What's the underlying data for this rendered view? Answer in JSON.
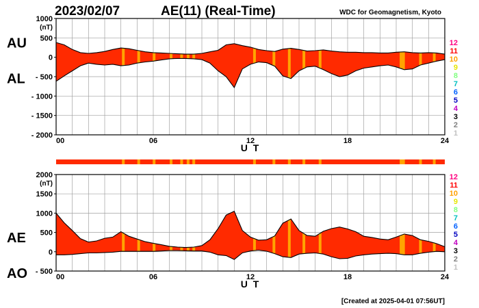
{
  "header": {
    "date": "2023/02/07",
    "title": "AE(11) (Real-Time)",
    "source": "WDC for Geomagnetism, Kyoto"
  },
  "footer": {
    "created": "[Created at 2025-04-01 07:56UT]"
  },
  "colors": {
    "fill": "#ff2a00",
    "highlight": "#ffa400",
    "line": "#000000",
    "grid": "#a0a0a0",
    "bar_fill": "#ff2a00"
  },
  "station_scale": {
    "labels": [
      "12",
      "11",
      "10",
      "9",
      "8",
      "7",
      "6",
      "5",
      "4",
      "3",
      "2",
      "1"
    ],
    "colors": [
      "#ff0080",
      "#ff0000",
      "#ffa000",
      "#e6e600",
      "#80ff80",
      "#00c0c0",
      "#0060ff",
      "#0000c0",
      "#c000c0",
      "#000000",
      "#808080",
      "#c0c0c0"
    ]
  },
  "chart_data": [
    {
      "type": "area",
      "name": "AU/AL panel",
      "series": [
        {
          "name": "AU"
        },
        {
          "name": "AL"
        }
      ],
      "ylabel_unit": "(nT)",
      "ylim": [
        -2000,
        1000
      ],
      "yticks": [
        1000,
        500,
        0,
        -500,
        -1000,
        -1500,
        -2000
      ],
      "ytick_labels": [
        "1000",
        "500",
        "0",
        "- 500",
        "- 1000",
        "- 1500",
        "- 2000"
      ],
      "xlim": [
        0,
        24
      ],
      "xticks": [
        0,
        6,
        12,
        18,
        24
      ],
      "xtick_labels": [
        "00",
        "06",
        "12",
        "18",
        "24"
      ],
      "xlabel": "U T",
      "x": [
        0,
        0.5,
        1,
        1.5,
        2,
        2.5,
        3,
        3.5,
        4,
        4.5,
        5,
        5.5,
        6,
        6.5,
        7,
        7.5,
        8,
        8.5,
        9,
        9.5,
        10,
        10.5,
        11,
        11.5,
        12,
        12.5,
        13,
        13.5,
        14,
        14.5,
        15,
        15.5,
        16,
        16.5,
        17,
        17.5,
        18,
        18.5,
        19,
        19.5,
        20,
        20.5,
        21,
        21.5,
        22,
        22.5,
        23,
        23.5,
        24
      ],
      "upper": [
        380,
        320,
        200,
        120,
        100,
        120,
        150,
        200,
        240,
        220,
        180,
        140,
        120,
        110,
        100,
        90,
        80,
        80,
        100,
        140,
        180,
        320,
        350,
        300,
        260,
        200,
        170,
        150,
        210,
        230,
        200,
        160,
        170,
        190,
        160,
        140,
        130,
        130,
        120,
        120,
        110,
        110,
        130,
        140,
        120,
        110,
        120,
        110,
        80
      ],
      "lower": [
        -620,
        -480,
        -350,
        -220,
        -150,
        -180,
        -200,
        -180,
        -220,
        -200,
        -150,
        -120,
        -100,
        -70,
        -40,
        -30,
        -30,
        -40,
        -60,
        -150,
        -350,
        -500,
        -780,
        -300,
        -180,
        -120,
        -140,
        -230,
        -480,
        -550,
        -350,
        -250,
        -230,
        -320,
        -420,
        -500,
        -460,
        -350,
        -280,
        -250,
        -220,
        -200,
        -250,
        -320,
        -300,
        -200,
        -150,
        -100,
        -60
      ]
    },
    {
      "type": "area",
      "name": "AE/AO panel",
      "series": [
        {
          "name": "AE"
        },
        {
          "name": "AO"
        }
      ],
      "ylabel_unit": "(nT)",
      "ylim": [
        -500,
        2000
      ],
      "yticks": [
        2000,
        1500,
        1000,
        500,
        0,
        -500
      ],
      "ytick_labels": [
        "2000",
        "1500",
        "1000",
        "500",
        "0",
        "- 500"
      ],
      "xlim": [
        0,
        24
      ],
      "xticks": [
        0,
        6,
        12,
        18,
        24
      ],
      "xtick_labels": [
        "00",
        "06",
        "12",
        "18",
        "24"
      ],
      "xlabel": "U T",
      "x": [
        0,
        0.5,
        1,
        1.5,
        2,
        2.5,
        3,
        3.5,
        4,
        4.5,
        5,
        5.5,
        6,
        6.5,
        7,
        7.5,
        8,
        8.5,
        9,
        9.5,
        10,
        10.5,
        11,
        11.5,
        12,
        12.5,
        13,
        13.5,
        14,
        14.5,
        15,
        15.5,
        16,
        16.5,
        17,
        17.5,
        18,
        18.5,
        19,
        19.5,
        20,
        20.5,
        21,
        21.5,
        22,
        22.5,
        23,
        23.5,
        24
      ],
      "upper": [
        1000,
        750,
        550,
        340,
        250,
        280,
        350,
        380,
        520,
        400,
        330,
        260,
        220,
        180,
        140,
        120,
        110,
        120,
        160,
        310,
        600,
        950,
        1050,
        550,
        380,
        300,
        310,
        410,
        740,
        850,
        550,
        420,
        400,
        530,
        600,
        640,
        590,
        520,
        400,
        370,
        330,
        310,
        380,
        460,
        420,
        310,
        270,
        210,
        130
      ],
      "lower": [
        -80,
        -80,
        -70,
        -50,
        -30,
        -30,
        -20,
        -10,
        10,
        10,
        10,
        10,
        10,
        20,
        30,
        30,
        25,
        20,
        20,
        -10,
        -80,
        -100,
        -200,
        -30,
        20,
        40,
        15,
        -50,
        -130,
        -150,
        -60,
        -40,
        -30,
        -60,
        -130,
        -180,
        -170,
        -110,
        -80,
        -60,
        -50,
        -40,
        -50,
        -80,
        -80,
        -40,
        -10,
        10,
        0
      ]
    }
  ],
  "status_bar": {
    "highlight_hours": [
      4.15,
      5.1,
      6.05,
      7.1,
      7.75,
      8.15,
      8.5,
      12.25,
      13.45,
      14.4,
      15.3,
      16.3,
      21.3,
      21.45,
      22.5,
      23.35
    ]
  }
}
